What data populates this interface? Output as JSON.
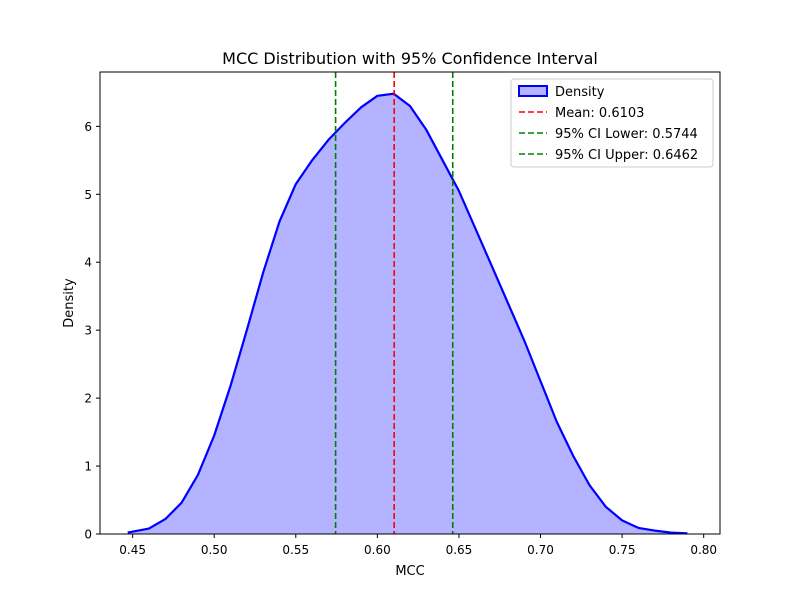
{
  "chart_data": {
    "type": "area",
    "title": "MCC Distribution with 95% Confidence Interval",
    "xlabel": "MCC",
    "ylabel": "Density",
    "xlim": [
      0.43,
      0.81
    ],
    "ylim": [
      0,
      6.8
    ],
    "xticks": [
      0.45,
      0.5,
      0.55,
      0.6,
      0.65,
      0.7,
      0.75,
      0.8
    ],
    "xtick_labels": [
      "0.45",
      "0.50",
      "0.55",
      "0.60",
      "0.65",
      "0.70",
      "0.75",
      "0.80"
    ],
    "yticks": [
      0,
      1,
      2,
      3,
      4,
      5,
      6
    ],
    "ytick_labels": [
      "0",
      "1",
      "2",
      "3",
      "4",
      "5",
      "6"
    ],
    "grid": false,
    "legend_placement": "top-right",
    "series": [
      {
        "name": "Density",
        "kind": "kde-area",
        "line_color": "#0000ff",
        "fill_color": "#b3b3ff",
        "x": [
          0.447,
          0.46,
          0.47,
          0.48,
          0.49,
          0.5,
          0.51,
          0.52,
          0.53,
          0.54,
          0.55,
          0.56,
          0.57,
          0.58,
          0.59,
          0.6,
          0.61,
          0.62,
          0.63,
          0.64,
          0.65,
          0.66,
          0.67,
          0.68,
          0.69,
          0.7,
          0.71,
          0.72,
          0.73,
          0.74,
          0.75,
          0.76,
          0.77,
          0.78,
          0.79
        ],
        "y": [
          0.02,
          0.08,
          0.22,
          0.46,
          0.87,
          1.45,
          2.18,
          3.0,
          3.85,
          4.6,
          5.15,
          5.5,
          5.8,
          6.05,
          6.28,
          6.45,
          6.48,
          6.3,
          5.95,
          5.5,
          5.05,
          4.5,
          3.95,
          3.4,
          2.85,
          2.25,
          1.65,
          1.15,
          0.72,
          0.4,
          0.2,
          0.09,
          0.05,
          0.02,
          0.01
        ]
      }
    ],
    "vlines": [
      {
        "name": "Mean: 0.6103",
        "x": 0.6103,
        "color": "#ff0000",
        "style": "dashed"
      },
      {
        "name": "95% CI Lower: 0.5744",
        "x": 0.5744,
        "color": "#008000",
        "style": "dashed"
      },
      {
        "name": "95% CI Upper: 0.6462",
        "x": 0.6462,
        "color": "#008000",
        "style": "dashed"
      }
    ]
  }
}
